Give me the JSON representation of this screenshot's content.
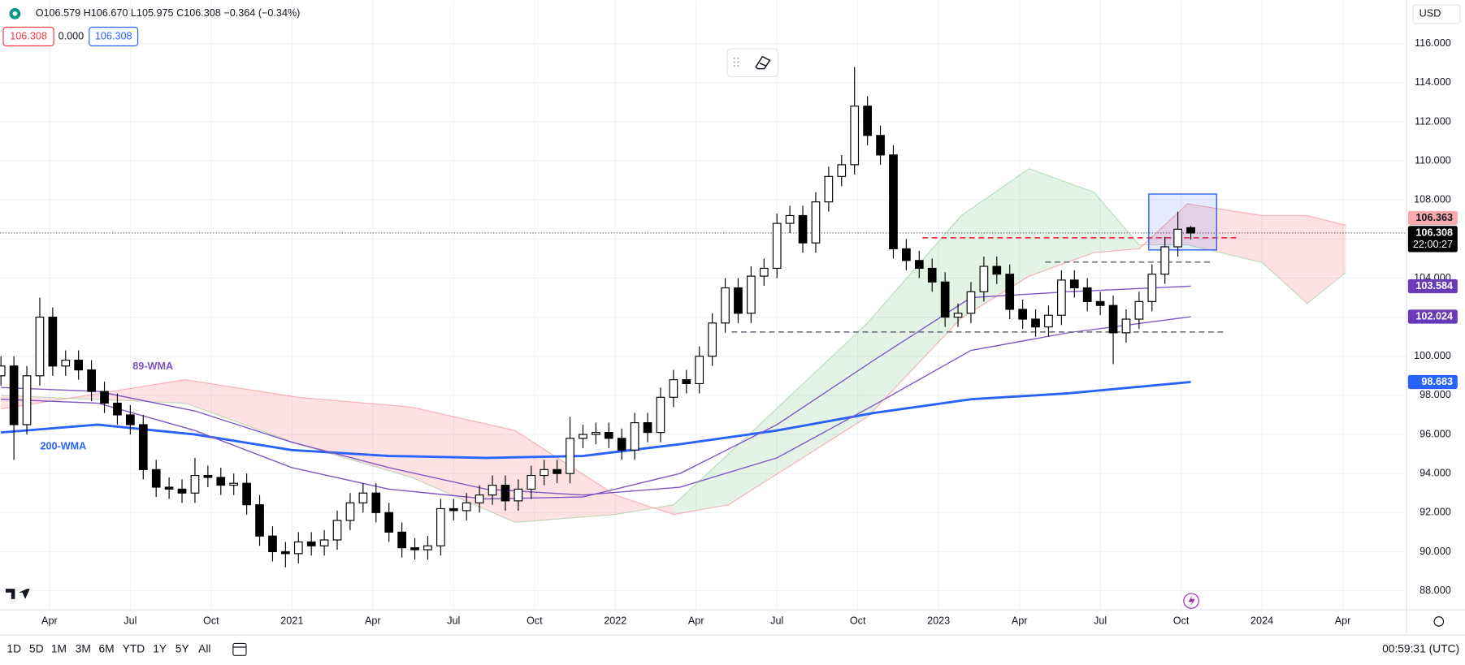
{
  "header": {
    "ohlc": "O106.579 H106.670 L105.975 C106.308 −0.364 (−0.34%)",
    "sell": "106.308",
    "spread": "0.000",
    "buy": "106.308"
  },
  "currency": "USD",
  "toolbar": {
    "ranges": [
      "1D",
      "5D",
      "1M",
      "3M",
      "6M",
      "YTD",
      "1Y",
      "5Y",
      "All"
    ],
    "clock": "00:59:31 (UTC)"
  },
  "chart_data": {
    "type": "candlestick",
    "x": [
      2020.1,
      2020.14,
      2020.18,
      2020.22,
      2020.26,
      2020.3,
      2020.34,
      2020.38,
      2020.42,
      2020.46,
      2020.5,
      2020.54,
      2020.58,
      2020.62,
      2020.66,
      2020.7,
      2020.74,
      2020.78,
      2020.82,
      2020.86,
      2020.9,
      2020.94,
      2020.98,
      2021.02,
      2021.06,
      2021.1,
      2021.14,
      2021.18,
      2021.22,
      2021.26,
      2021.3,
      2021.34,
      2021.38,
      2021.42,
      2021.46,
      2021.5,
      2021.54,
      2021.58,
      2021.62,
      2021.66,
      2021.7,
      2021.74,
      2021.78,
      2021.82,
      2021.86,
      2021.9,
      2021.94,
      2021.98,
      2022.02,
      2022.06,
      2022.1,
      2022.14,
      2022.18,
      2022.22,
      2022.26,
      2022.3,
      2022.34,
      2022.38,
      2022.42,
      2022.46,
      2022.5,
      2022.54,
      2022.58,
      2022.62,
      2022.66,
      2022.7,
      2022.74,
      2022.78,
      2022.82,
      2022.86,
      2022.9,
      2022.94,
      2022.98,
      2023.02,
      2023.06,
      2023.1,
      2023.14,
      2023.18,
      2023.22,
      2023.26,
      2023.3,
      2023.34,
      2023.38,
      2023.42,
      2023.46,
      2023.5,
      2023.54,
      2023.58,
      2023.62,
      2023.66,
      2023.7,
      2023.74,
      2023.78
    ],
    "open": [
      99.0,
      99.5,
      96.5,
      99.0,
      102.0,
      99.5,
      99.8,
      99.3,
      98.2,
      97.6,
      97.0,
      96.5,
      94.2,
      93.3,
      93.2,
      93.0,
      93.9,
      93.8,
      93.4,
      93.5,
      92.4,
      90.8,
      90.0,
      89.9,
      90.5,
      90.3,
      90.6,
      91.6,
      92.5,
      93.0,
      92.0,
      91.0,
      90.2,
      90.1,
      90.3,
      92.2,
      92.1,
      92.5,
      92.9,
      93.4,
      92.6,
      93.2,
      93.9,
      94.2,
      94.0,
      95.8,
      96.0,
      96.1,
      95.8,
      95.2,
      96.6,
      96.1,
      97.9,
      98.8,
      98.6,
      100.0,
      101.7,
      103.5,
      102.2,
      104.1,
      104.5,
      106.8,
      107.2,
      105.8,
      107.9,
      109.2,
      109.8,
      112.8,
      111.3,
      110.3,
      105.5,
      104.9,
      104.5,
      103.8,
      102.0,
      102.2,
      103.3,
      104.6,
      104.2,
      102.4,
      101.9,
      101.5,
      102.1,
      103.9,
      103.5,
      102.8,
      102.6,
      101.2,
      101.9,
      102.8,
      104.2,
      105.6,
      106.579
    ],
    "high": [
      100.0,
      100.0,
      99.5,
      103.0,
      102.5,
      100.3,
      100.3,
      99.8,
      98.7,
      98.1,
      97.5,
      97.0,
      94.7,
      93.8,
      93.7,
      94.8,
      94.4,
      94.3,
      94.0,
      94.0,
      92.9,
      91.3,
      90.5,
      91.0,
      91.0,
      91.1,
      92.1,
      93.0,
      93.5,
      93.5,
      92.5,
      91.5,
      90.7,
      90.8,
      92.7,
      92.7,
      93.0,
      93.4,
      93.9,
      93.9,
      93.7,
      94.4,
      94.7,
      94.7,
      96.9,
      96.5,
      96.6,
      96.6,
      96.3,
      97.1,
      97.1,
      98.4,
      99.3,
      99.3,
      100.5,
      102.2,
      104.0,
      104.0,
      104.6,
      105.0,
      107.3,
      107.7,
      107.7,
      108.4,
      109.7,
      110.3,
      114.8,
      113.3,
      111.8,
      110.8,
      106.0,
      105.4,
      105.0,
      104.3,
      102.7,
      103.8,
      105.1,
      105.1,
      104.7,
      102.9,
      102.4,
      102.6,
      104.4,
      104.4,
      104.0,
      103.3,
      103.1,
      102.4,
      103.3,
      104.7,
      106.1,
      107.4,
      106.67
    ],
    "low": [
      98.5,
      94.7,
      96.0,
      98.5,
      99.0,
      99.0,
      98.8,
      97.7,
      97.1,
      96.5,
      96.0,
      93.7,
      92.8,
      92.7,
      92.5,
      92.5,
      93.3,
      92.9,
      92.9,
      91.9,
      90.3,
      89.5,
      89.2,
      89.4,
      89.8,
      89.8,
      90.1,
      91.1,
      92.0,
      91.5,
      90.5,
      89.7,
      89.6,
      89.6,
      89.8,
      91.6,
      91.6,
      92.0,
      92.4,
      92.1,
      92.1,
      92.7,
      93.4,
      93.5,
      93.5,
      95.3,
      95.5,
      95.3,
      94.7,
      94.7,
      95.6,
      95.6,
      97.4,
      98.1,
      98.1,
      99.5,
      101.2,
      101.7,
      101.7,
      103.6,
      104.0,
      106.3,
      105.3,
      105.3,
      107.4,
      108.7,
      109.3,
      110.8,
      109.8,
      105.0,
      104.4,
      104.0,
      103.3,
      101.5,
      101.5,
      101.7,
      102.8,
      103.7,
      101.9,
      101.4,
      101.0,
      101.0,
      101.6,
      103.0,
      102.3,
      102.1,
      99.6,
      100.7,
      101.4,
      102.3,
      103.7,
      105.1,
      105.975
    ],
    "close": [
      99.5,
      96.5,
      99.0,
      102.0,
      99.5,
      99.8,
      99.3,
      98.2,
      97.6,
      97.0,
      96.5,
      94.2,
      93.3,
      93.2,
      93.0,
      93.9,
      93.8,
      93.4,
      93.5,
      92.4,
      90.8,
      90.0,
      89.9,
      90.5,
      90.3,
      90.6,
      91.6,
      92.5,
      93.0,
      92.0,
      91.0,
      90.2,
      90.1,
      90.3,
      92.2,
      92.1,
      92.5,
      92.9,
      93.4,
      92.6,
      93.2,
      93.9,
      94.2,
      94.0,
      95.8,
      96.0,
      96.1,
      95.8,
      95.2,
      96.6,
      96.1,
      97.9,
      98.8,
      98.6,
      100.0,
      101.7,
      103.5,
      102.2,
      104.1,
      104.5,
      106.8,
      107.2,
      105.8,
      107.9,
      109.2,
      109.8,
      112.8,
      111.3,
      110.3,
      105.5,
      104.9,
      104.5,
      103.8,
      102.0,
      102.2,
      103.3,
      104.6,
      104.2,
      102.4,
      101.9,
      101.5,
      102.1,
      103.9,
      103.5,
      102.8,
      102.6,
      101.2,
      101.9,
      102.8,
      104.2,
      105.6,
      106.5,
      106.308
    ],
    "up_color": "#ffffff",
    "down_color": "#000000",
    "xlim": [
      2020.097,
      2024.446
    ],
    "ylim": [
      87.05,
      118.2
    ],
    "xticks": [
      {
        "value": 2020.25,
        "label": "Apr"
      },
      {
        "value": 2020.5,
        "label": "Jul"
      },
      {
        "value": 2020.75,
        "label": "Oct"
      },
      2021,
      {
        "value": 2021.25,
        "label": "Apr"
      },
      {
        "value": 2021.5,
        "label": "Jul"
      },
      {
        "value": 2021.75,
        "label": "Oct"
      },
      2022,
      {
        "value": 2022.25,
        "label": "Apr"
      },
      {
        "value": 2022.5,
        "label": "Jul"
      },
      {
        "value": 2022.75,
        "label": "Oct"
      },
      2023,
      {
        "value": 2023.25,
        "label": "Apr"
      },
      {
        "value": 2023.5,
        "label": "Jul"
      },
      {
        "value": 2023.75,
        "label": "Oct"
      },
      2024,
      {
        "value": 2024.25,
        "label": "Apr"
      }
    ],
    "yticks": [
      {
        "value": 88,
        "label": "88.000"
      },
      {
        "value": 90,
        "label": "90.000"
      },
      {
        "value": 92,
        "label": "92.000"
      },
      {
        "value": 94,
        "label": "94.000"
      },
      {
        "value": 96,
        "label": "96.000"
      },
      {
        "value": 98,
        "label": "98.000"
      },
      {
        "value": 100,
        "label": "100.000"
      },
      {
        "value": 102,
        "label": "102.000"
      },
      {
        "value": 104,
        "label": "104.000"
      },
      {
        "value": 106,
        "label": "106.000"
      },
      {
        "value": 108,
        "label": "108.000"
      },
      {
        "value": 110,
        "label": "110.000"
      },
      {
        "value": 112,
        "label": "112.000"
      },
      {
        "value": 114,
        "label": "114.000"
      },
      {
        "value": 116,
        "label": "116.000"
      }
    ],
    "grid": true,
    "cloud": {
      "x": [
        2020.1,
        2020.67,
        2021.02,
        2021.37,
        2021.69,
        2022.0,
        2022.18,
        2022.35,
        2022.78,
        2023.07,
        2023.28,
        2023.48,
        2023.62,
        2023.77,
        2024.0,
        2024.14,
        2024.26
      ],
      "span_a": [
        98.0,
        97.6,
        95.5,
        93.8,
        91.5,
        91.9,
        92.4,
        95.0,
        101.7,
        107.2,
        109.6,
        108.4,
        105.7,
        105.7,
        104.8,
        102.7,
        104.3
      ],
      "span_b": [
        97.3,
        98.8,
        97.9,
        97.4,
        96.2,
        92.9,
        91.9,
        92.4,
        96.9,
        101.95,
        104.1,
        105.3,
        105.5,
        107.8,
        107.2,
        107.2,
        106.7
      ],
      "up_color": "#4caf50",
      "down_color": "#f23645"
    },
    "lines": [
      {
        "name": "200-WMA",
        "color": "#2962ff",
        "width": 2.5,
        "x": [
          2020.1,
          2020.4,
          2020.7,
          2021.0,
          2021.3,
          2021.6,
          2021.9,
          2022.2,
          2022.5,
          2022.8,
          2023.1,
          2023.4,
          2023.78
        ],
        "values": [
          96.1,
          96.5,
          96.0,
          95.2,
          94.9,
          94.8,
          94.9,
          95.5,
          96.2,
          97.1,
          97.8,
          98.1,
          98.683
        ]
      },
      {
        "name": "89-WMA",
        "color": "#7e57c2",
        "width": 1.2,
        "x": [
          2020.1,
          2020.4,
          2020.7,
          2021.0,
          2021.3,
          2021.6,
          2021.9,
          2022.2,
          2022.5,
          2022.8,
          2023.1,
          2023.4,
          2023.78
        ],
        "values": [
          98.4,
          98.2,
          97.2,
          95.6,
          94.3,
          93.2,
          92.9,
          93.3,
          94.8,
          97.5,
          100.3,
          101.2,
          102.024
        ]
      },
      {
        "color": "#7e57c2",
        "width": 1.2,
        "x": [
          2020.1,
          2020.4,
          2020.7,
          2021.0,
          2021.3,
          2021.6,
          2021.9,
          2022.2,
          2022.5,
          2022.8,
          2023.1,
          2023.4,
          2023.78
        ],
        "values": [
          97.8,
          97.6,
          96.2,
          94.3,
          93.2,
          92.7,
          92.8,
          94.0,
          96.5,
          99.8,
          103.0,
          103.3,
          103.584
        ]
      }
    ],
    "hlines": [
      {
        "value": 106.06,
        "x": [
          2022.95,
          2023.92
        ],
        "color": "#f23645"
      },
      {
        "value": 104.82,
        "x": [
          2023.33,
          2023.84
        ],
        "color": "#787b86"
      },
      {
        "value": 101.24,
        "x": [
          2022.36,
          2023.88
        ],
        "color": "#787b86"
      }
    ],
    "box": {
      "x": [
        2023.65,
        2023.86
      ],
      "y": [
        105.44,
        108.3
      ],
      "color": "#2962ff"
    },
    "badges": [
      {
        "value": 106.363,
        "color": "#f7a9ad",
        "text_color": "#131722"
      },
      {
        "value": 106.308,
        "color": "#000000",
        "text_color": "#ffffff",
        "countdown": "22:00:27"
      },
      {
        "value": 103.584,
        "color": "#673ab7",
        "text_color": "#ffffff"
      },
      {
        "value": 102.024,
        "color": "#673ab7",
        "text_color": "#ffffff"
      },
      {
        "value": 98.683,
        "color": "#2962ff",
        "text_color": "#ffffff"
      }
    ]
  }
}
